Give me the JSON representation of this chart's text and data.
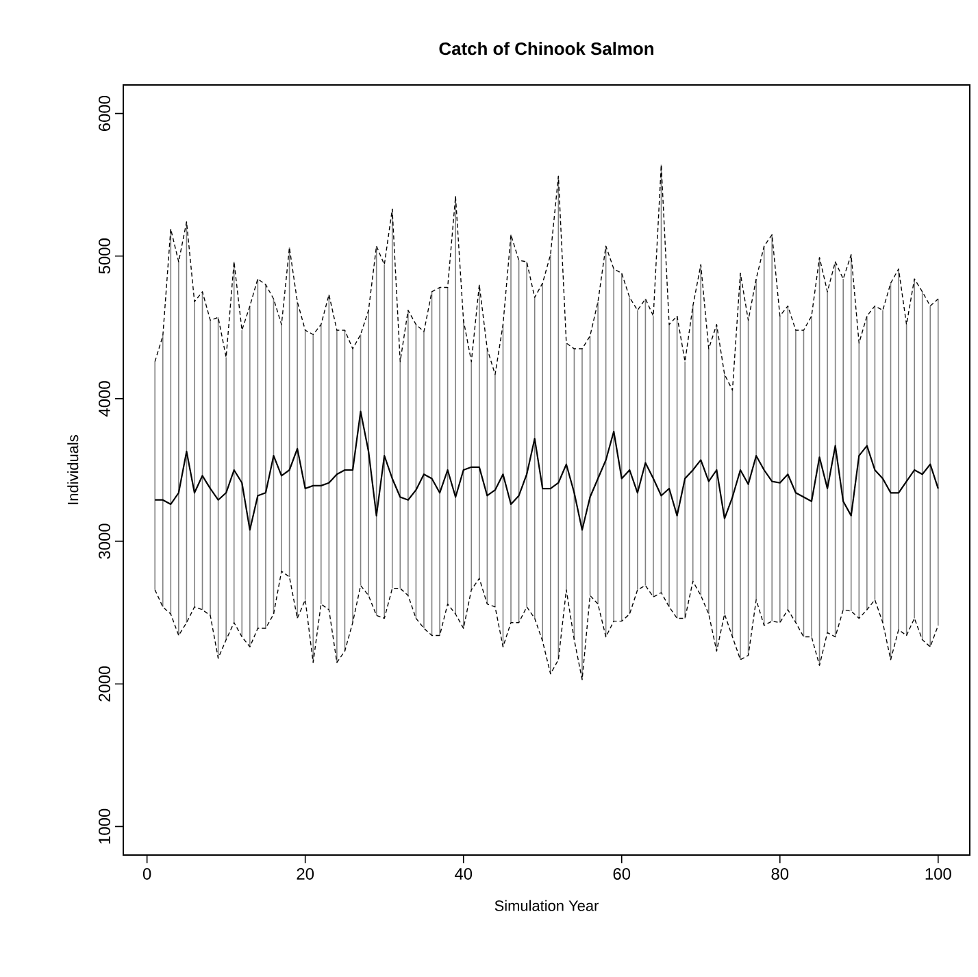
{
  "chart_data": {
    "type": "line",
    "title": "Catch of Chinook Salmon",
    "xlabel": "Simulation Year",
    "ylabel": "Individuals",
    "x": [
      1,
      2,
      3,
      4,
      5,
      6,
      7,
      8,
      9,
      10,
      11,
      12,
      13,
      14,
      15,
      16,
      17,
      18,
      19,
      20,
      21,
      22,
      23,
      24,
      25,
      26,
      27,
      28,
      29,
      30,
      31,
      32,
      33,
      34,
      35,
      36,
      37,
      38,
      39,
      40,
      41,
      42,
      43,
      44,
      45,
      46,
      47,
      48,
      49,
      50,
      51,
      52,
      53,
      54,
      55,
      56,
      57,
      58,
      59,
      60,
      61,
      62,
      63,
      64,
      65,
      66,
      67,
      68,
      69,
      70,
      71,
      72,
      73,
      74,
      75,
      76,
      77,
      78,
      79,
      80,
      81,
      82,
      83,
      84,
      85,
      86,
      87,
      88,
      89,
      90,
      91,
      92,
      93,
      94,
      95,
      96,
      97,
      98,
      99,
      100
    ],
    "series": [
      {
        "color": "#000000",
        "line_style": "solid",
        "values": [
          3290,
          3290,
          3260,
          3340,
          3630,
          3340,
          3460,
          3370,
          3290,
          3340,
          3500,
          3410,
          3080,
          3320,
          3340,
          3600,
          3460,
          3500,
          3650,
          3370,
          3390,
          3390,
          3410,
          3470,
          3500,
          3500,
          3910,
          3630,
          3180,
          3600,
          3440,
          3310,
          3290,
          3360,
          3470,
          3440,
          3340,
          3500,
          3310,
          3500,
          3520,
          3520,
          3320,
          3360,
          3470,
          3260,
          3320,
          3470,
          3720,
          3370,
          3370,
          3410,
          3540,
          3340,
          3080,
          3310,
          3440,
          3570,
          3770,
          3440,
          3500,
          3340,
          3550,
          3440,
          3320,
          3370,
          3180,
          3440,
          3500,
          3570,
          3420,
          3500,
          3160,
          3310,
          3500,
          3400,
          3600,
          3500,
          3420,
          3410,
          3470,
          3340,
          3310,
          3280,
          3590,
          3370,
          3670,
          3280,
          3180,
          3600,
          3670,
          3500,
          3440,
          3340,
          3340,
          3420,
          3500,
          3470,
          3540,
          3370
        ],
        "errors": [
          [
            2660,
            4260
          ],
          [
            2540,
            4440
          ],
          [
            2490,
            5190
          ],
          [
            2340,
            4960
          ],
          [
            2430,
            5240
          ],
          [
            2540,
            4680
          ],
          [
            2520,
            4750
          ],
          [
            2480,
            4550
          ],
          [
            2180,
            4570
          ],
          [
            2310,
            4290
          ],
          [
            2430,
            4960
          ],
          [
            2330,
            4480
          ],
          [
            2260,
            4650
          ],
          [
            2390,
            4840
          ],
          [
            2390,
            4800
          ],
          [
            2490,
            4700
          ],
          [
            2790,
            4520
          ],
          [
            2750,
            5060
          ],
          [
            2460,
            4680
          ],
          [
            2590,
            4480
          ],
          [
            2150,
            4450
          ],
          [
            2560,
            4520
          ],
          [
            2520,
            4730
          ],
          [
            2150,
            4480
          ],
          [
            2230,
            4480
          ],
          [
            2430,
            4350
          ],
          [
            2690,
            4450
          ],
          [
            2620,
            4620
          ],
          [
            2480,
            5070
          ],
          [
            2460,
            4940
          ],
          [
            2670,
            5330
          ],
          [
            2670,
            4260
          ],
          [
            2620,
            4620
          ],
          [
            2460,
            4520
          ],
          [
            2390,
            4470
          ],
          [
            2340,
            4750
          ],
          [
            2340,
            4780
          ],
          [
            2560,
            4780
          ],
          [
            2490,
            5420
          ],
          [
            2390,
            4550
          ],
          [
            2660,
            4260
          ],
          [
            2740,
            4800
          ],
          [
            2560,
            4350
          ],
          [
            2540,
            4170
          ],
          [
            2260,
            4520
          ],
          [
            2430,
            5150
          ],
          [
            2430,
            4970
          ],
          [
            2540,
            4960
          ],
          [
            2460,
            4710
          ],
          [
            2300,
            4810
          ],
          [
            2070,
            5010
          ],
          [
            2170,
            5560
          ],
          [
            2660,
            4390
          ],
          [
            2310,
            4350
          ],
          [
            2030,
            4350
          ],
          [
            2620,
            4440
          ],
          [
            2560,
            4680
          ],
          [
            2330,
            5070
          ],
          [
            2440,
            4910
          ],
          [
            2440,
            4880
          ],
          [
            2490,
            4710
          ],
          [
            2660,
            4620
          ],
          [
            2690,
            4700
          ],
          [
            2610,
            4580
          ],
          [
            2640,
            5640
          ],
          [
            2540,
            4520
          ],
          [
            2460,
            4580
          ],
          [
            2460,
            4260
          ],
          [
            2720,
            4650
          ],
          [
            2620,
            4940
          ],
          [
            2490,
            4350
          ],
          [
            2230,
            4520
          ],
          [
            2490,
            4170
          ],
          [
            2330,
            4060
          ],
          [
            2170,
            4880
          ],
          [
            2200,
            4550
          ],
          [
            2590,
            4840
          ],
          [
            2410,
            5070
          ],
          [
            2440,
            5150
          ],
          [
            2430,
            4580
          ],
          [
            2520,
            4650
          ],
          [
            2430,
            4480
          ],
          [
            2330,
            4480
          ],
          [
            2330,
            4580
          ],
          [
            2130,
            4990
          ],
          [
            2360,
            4750
          ],
          [
            2330,
            4960
          ],
          [
            2520,
            4840
          ],
          [
            2510,
            5010
          ],
          [
            2460,
            4390
          ],
          [
            2520,
            4580
          ],
          [
            2590,
            4650
          ],
          [
            2430,
            4620
          ],
          [
            2170,
            4810
          ],
          [
            2380,
            4910
          ],
          [
            2340,
            4520
          ],
          [
            2460,
            4840
          ],
          [
            2310,
            4750
          ],
          [
            2260,
            4650
          ],
          [
            2410,
            4700
          ]
        ]
      },
      {
        "color": "#000000",
        "line_style": "dashed",
        "values": [
          4260,
          4440,
          5190,
          4960,
          5240,
          4680,
          4750,
          4550,
          4570,
          4290,
          4960,
          4480,
          4650,
          4840,
          4800,
          4700,
          4520,
          5060,
          4680,
          4480,
          4450,
          4520,
          4730,
          4480,
          4480,
          4350,
          4450,
          4620,
          5070,
          4940,
          5330,
          4260,
          4620,
          4520,
          4470,
          4750,
          4780,
          4780,
          5420,
          4550,
          4260,
          4800,
          4350,
          4170,
          4520,
          5150,
          4970,
          4960,
          4710,
          4810,
          5010,
          5560,
          4390,
          4350,
          4350,
          4440,
          4680,
          5070,
          4910,
          4880,
          4710,
          4620,
          4700,
          4580,
          5640,
          4520,
          4580,
          4260,
          4650,
          4940,
          4350,
          4520,
          4170,
          4060,
          4880,
          4550,
          4840,
          5070,
          5150,
          4580,
          4650,
          4480,
          4480,
          4580,
          4990,
          4750,
          4960,
          4840,
          5010,
          4390,
          4580,
          4650,
          4620,
          4810,
          4910,
          4520,
          4840,
          4750,
          4650,
          4700
        ]
      },
      {
        "color": "#000000",
        "line_style": "dashed",
        "values": [
          2660,
          2540,
          2490,
          2340,
          2430,
          2540,
          2520,
          2480,
          2180,
          2310,
          2430,
          2330,
          2260,
          2390,
          2390,
          2490,
          2790,
          2750,
          2460,
          2590,
          2150,
          2560,
          2520,
          2150,
          2230,
          2430,
          2690,
          2620,
          2480,
          2460,
          2670,
          2670,
          2620,
          2460,
          2390,
          2340,
          2340,
          2560,
          2490,
          2390,
          2660,
          2740,
          2560,
          2540,
          2260,
          2430,
          2430,
          2540,
          2460,
          2300,
          2070,
          2170,
          2660,
          2310,
          2030,
          2620,
          2560,
          2330,
          2440,
          2440,
          2490,
          2660,
          2690,
          2610,
          2640,
          2540,
          2460,
          2460,
          2720,
          2620,
          2490,
          2230,
          2490,
          2330,
          2170,
          2200,
          2590,
          2410,
          2440,
          2430,
          2520,
          2430,
          2330,
          2330,
          2130,
          2360,
          2330,
          2520,
          2510,
          2460,
          2520,
          2590,
          2430,
          2170,
          2380,
          2340,
          2460,
          2310,
          2260,
          2410
        ]
      }
    ],
    "xlim": [
      -3,
      104
    ],
    "ylim": [
      800,
      6200
    ],
    "xticks": [
      0,
      20,
      40,
      60,
      80,
      100
    ],
    "yticks": [
      1000,
      2000,
      3000,
      4000,
      5000,
      6000
    ],
    "grid": false,
    "marker": "none"
  }
}
